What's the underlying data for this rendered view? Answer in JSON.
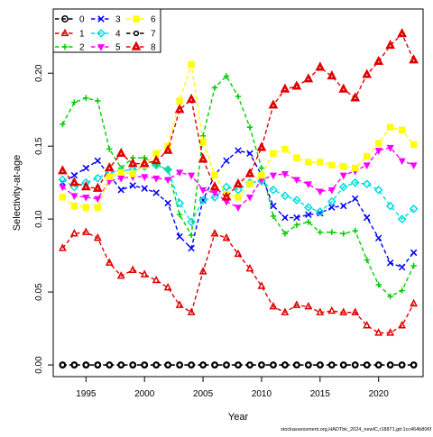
{
  "chart_data": {
    "type": "line",
    "xlabel": "Year",
    "ylabel": "Selectivity-at-age",
    "xlim": [
      1992.2,
      2023.8
    ],
    "ylim": [
      -0.008,
      0.244
    ],
    "x_ticks": [
      1995,
      2000,
      2005,
      2010,
      2015,
      2020
    ],
    "y_ticks": [
      0.0,
      0.05,
      0.1,
      0.15,
      0.2
    ],
    "y_tick_labels": [
      "0.00",
      "0.05",
      "0.10",
      "0.15",
      "0.20"
    ],
    "grid": false,
    "legend_position": "top-left",
    "footnote": "stockassessment.org,HADTbk_2024_newIC,r18871,git:1cc464b806f",
    "x": [
      1993,
      1994,
      1995,
      1996,
      1997,
      1998,
      1999,
      2000,
      2001,
      2002,
      2003,
      2004,
      2005,
      2006,
      2007,
      2008,
      2009,
      2010,
      2011,
      2012,
      2013,
      2014,
      2015,
      2016,
      2017,
      2018,
      2019,
      2020,
      2021,
      2022,
      2023
    ],
    "series": [
      {
        "name": "0",
        "color": "#000000",
        "marker": "circle",
        "values": [
          0,
          0,
          0,
          0,
          0,
          0,
          0,
          0,
          0,
          0,
          0,
          0,
          0,
          0,
          0,
          0,
          0,
          0,
          0,
          0,
          0,
          0,
          0,
          0,
          0,
          0,
          0,
          0,
          0,
          0,
          0
        ]
      },
      {
        "name": "1",
        "color": "#DF0000",
        "marker": "triangle",
        "values": [
          0.08,
          0.09,
          0.091,
          0.087,
          0.07,
          0.061,
          0.065,
          0.062,
          0.058,
          0.053,
          0.041,
          0.036,
          0.064,
          0.09,
          0.087,
          0.076,
          0.066,
          0.054,
          0.04,
          0.036,
          0.041,
          0.04,
          0.036,
          0.037,
          0.036,
          0.036,
          0.027,
          0.022,
          0.022,
          0.027,
          0.042
        ]
      },
      {
        "name": "2",
        "color": "#00CD00",
        "marker": "plus",
        "values": [
          0.165,
          0.18,
          0.183,
          0.181,
          0.148,
          0.135,
          0.142,
          0.142,
          0.137,
          0.134,
          0.103,
          0.089,
          0.157,
          0.19,
          0.198,
          0.184,
          0.163,
          0.135,
          0.102,
          0.09,
          0.096,
          0.098,
          0.091,
          0.091,
          0.09,
          0.092,
          0.072,
          0.055,
          0.047,
          0.051,
          0.068
        ]
      },
      {
        "name": "3",
        "color": "#0000FF",
        "marker": "x",
        "values": [
          0.125,
          0.13,
          0.135,
          0.14,
          0.13,
          0.12,
          0.123,
          0.121,
          0.118,
          0.111,
          0.088,
          0.08,
          0.113,
          0.13,
          0.14,
          0.147,
          0.145,
          0.13,
          0.109,
          0.101,
          0.101,
          0.103,
          0.104,
          0.108,
          0.109,
          0.114,
          0.101,
          0.087,
          0.07,
          0.067,
          0.077
        ]
      },
      {
        "name": "4",
        "color": "#00DDDD",
        "marker": "diamond",
        "values": [
          0.127,
          0.122,
          0.125,
          0.128,
          0.132,
          0.133,
          0.134,
          0.136,
          0.137,
          0.134,
          0.111,
          0.098,
          0.113,
          0.115,
          0.122,
          0.12,
          0.125,
          0.126,
          0.12,
          0.116,
          0.113,
          0.108,
          0.105,
          0.112,
          0.122,
          0.125,
          0.124,
          0.12,
          0.109,
          0.1,
          0.107
        ]
      },
      {
        "name": "5",
        "color": "#FF00FF",
        "marker": "triangle-down",
        "values": [
          0.122,
          0.116,
          0.115,
          0.114,
          0.126,
          0.128,
          0.129,
          0.129,
          0.128,
          0.127,
          0.132,
          0.13,
          0.12,
          0.118,
          0.112,
          0.108,
          0.115,
          0.127,
          0.13,
          0.131,
          0.127,
          0.124,
          0.119,
          0.12,
          0.13,
          0.133,
          0.137,
          0.147,
          0.149,
          0.14,
          0.137
        ]
      },
      {
        "name": "6",
        "color": "#FFFF00",
        "marker": "square",
        "values": [
          0.115,
          0.109,
          0.108,
          0.108,
          0.129,
          0.132,
          0.131,
          0.137,
          0.145,
          0.15,
          0.181,
          0.206,
          0.153,
          0.13,
          0.117,
          0.115,
          0.124,
          0.13,
          0.145,
          0.148,
          0.142,
          0.139,
          0.139,
          0.137,
          0.136,
          0.135,
          0.143,
          0.152,
          0.163,
          0.161,
          0.151
        ]
      },
      {
        "name": "7",
        "color": "#000000",
        "marker": "circle-open",
        "values": [
          0,
          0,
          0,
          0,
          0,
          0,
          0,
          0,
          0,
          0,
          0,
          0,
          0,
          0,
          0,
          0,
          0,
          0,
          0,
          0,
          0,
          0,
          0,
          0,
          0,
          0,
          0,
          0,
          0,
          0,
          0
        ]
      },
      {
        "name": "8",
        "color": "#DF0000",
        "marker": "triangle-filled",
        "values": [
          0.133,
          0.125,
          0.122,
          0.121,
          0.135,
          0.145,
          0.138,
          0.138,
          0.14,
          0.147,
          0.175,
          0.182,
          0.141,
          0.122,
          0.115,
          0.124,
          0.131,
          0.149,
          0.178,
          0.189,
          0.191,
          0.196,
          0.204,
          0.198,
          0.189,
          0.183,
          0.199,
          0.208,
          0.219,
          0.227,
          0.209
        ]
      }
    ]
  }
}
